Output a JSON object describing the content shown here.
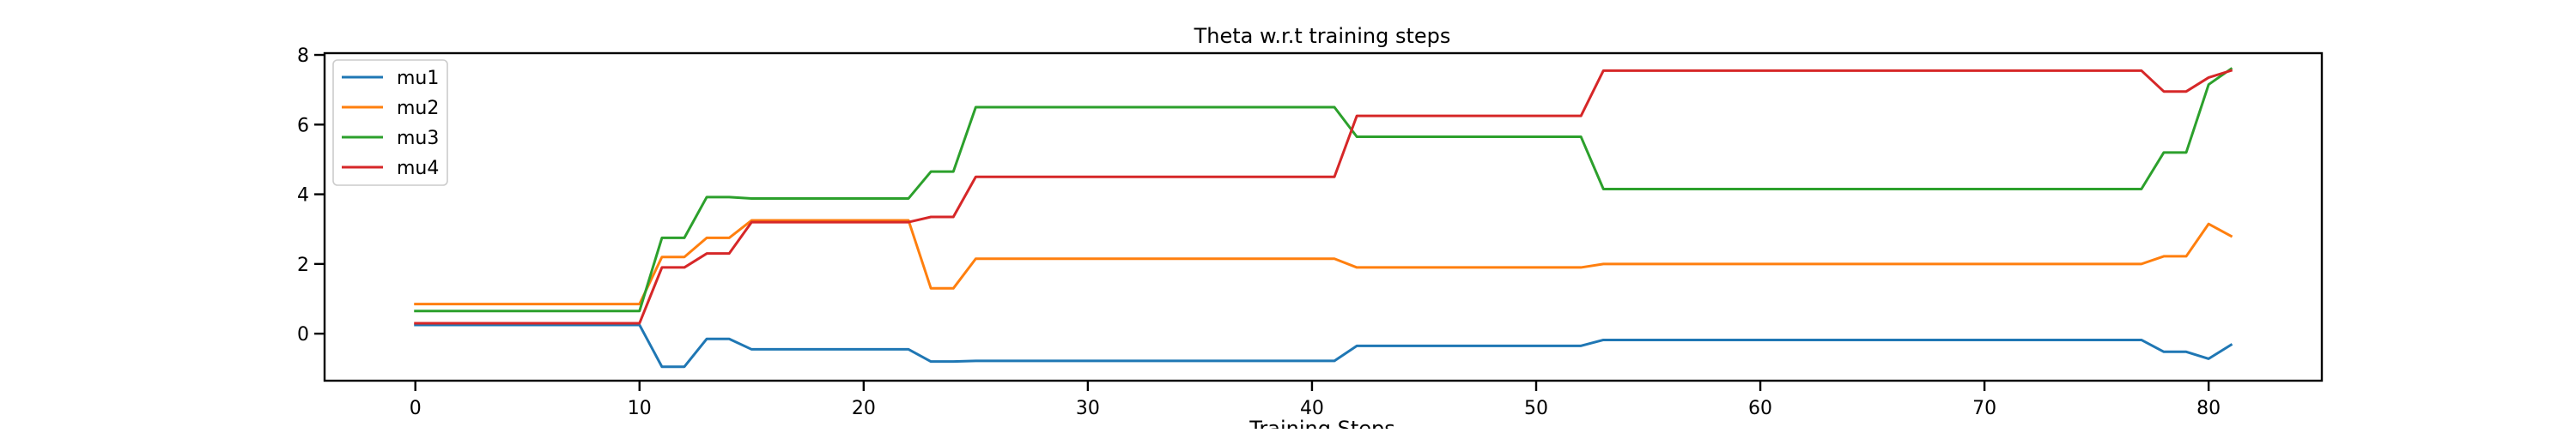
{
  "chart_data": {
    "type": "line",
    "title": "Theta w.r.t training steps",
    "xlabel": "Training Steps",
    "ylabel": "",
    "xlim": [
      -4.05,
      85.05
    ],
    "ylim": [
      -1.35,
      8.05
    ],
    "xticks": [
      0,
      10,
      20,
      30,
      40,
      50,
      60,
      70,
      80
    ],
    "yticks": [
      0,
      2,
      4,
      6,
      8
    ],
    "grid": false,
    "legend_position": "upper left",
    "x": [
      0,
      1,
      2,
      3,
      4,
      5,
      6,
      7,
      8,
      9,
      10,
      11,
      12,
      13,
      14,
      15,
      16,
      17,
      18,
      19,
      20,
      21,
      22,
      23,
      24,
      25,
      26,
      27,
      28,
      29,
      30,
      31,
      32,
      33,
      34,
      35,
      36,
      37,
      38,
      39,
      40,
      41,
      42,
      43,
      44,
      45,
      46,
      47,
      48,
      49,
      50,
      51,
      52,
      53,
      54,
      55,
      56,
      57,
      58,
      59,
      60,
      61,
      62,
      63,
      64,
      65,
      66,
      67,
      68,
      69,
      70,
      71,
      72,
      73,
      74,
      75,
      76,
      77,
      78,
      79,
      80,
      81
    ],
    "series": [
      {
        "name": "mu1",
        "color": "#1f77b4",
        "values": [
          0.25,
          0.25,
          0.25,
          0.25,
          0.25,
          0.25,
          0.25,
          0.25,
          0.25,
          0.25,
          0.25,
          -0.95,
          -0.95,
          -0.15,
          -0.15,
          -0.45,
          -0.45,
          -0.45,
          -0.45,
          -0.45,
          -0.45,
          -0.45,
          -0.45,
          -0.8,
          -0.8,
          -0.78,
          -0.78,
          -0.78,
          -0.78,
          -0.78,
          -0.78,
          -0.78,
          -0.78,
          -0.78,
          -0.78,
          -0.78,
          -0.78,
          -0.78,
          -0.78,
          -0.78,
          -0.78,
          -0.78,
          -0.35,
          -0.35,
          -0.35,
          -0.35,
          -0.35,
          -0.35,
          -0.35,
          -0.35,
          -0.35,
          -0.35,
          -0.35,
          -0.18,
          -0.18,
          -0.18,
          -0.18,
          -0.18,
          -0.18,
          -0.18,
          -0.18,
          -0.18,
          -0.18,
          -0.18,
          -0.18,
          -0.18,
          -0.18,
          -0.18,
          -0.18,
          -0.18,
          -0.18,
          -0.18,
          -0.18,
          -0.18,
          -0.18,
          -0.18,
          -0.18,
          -0.18,
          -0.52,
          -0.52,
          -0.72,
          -0.32
        ]
      },
      {
        "name": "mu2",
        "color": "#ff7f0e",
        "values": [
          0.85,
          0.85,
          0.85,
          0.85,
          0.85,
          0.85,
          0.85,
          0.85,
          0.85,
          0.85,
          0.85,
          2.2,
          2.2,
          2.75,
          2.75,
          3.25,
          3.25,
          3.25,
          3.25,
          3.25,
          3.25,
          3.25,
          3.25,
          1.3,
          1.3,
          2.15,
          2.15,
          2.15,
          2.15,
          2.15,
          2.15,
          2.15,
          2.15,
          2.15,
          2.15,
          2.15,
          2.15,
          2.15,
          2.15,
          2.15,
          2.15,
          2.15,
          1.9,
          1.9,
          1.9,
          1.9,
          1.9,
          1.9,
          1.9,
          1.9,
          1.9,
          1.9,
          1.9,
          2.0,
          2.0,
          2.0,
          2.0,
          2.0,
          2.0,
          2.0,
          2.0,
          2.0,
          2.0,
          2.0,
          2.0,
          2.0,
          2.0,
          2.0,
          2.0,
          2.0,
          2.0,
          2.0,
          2.0,
          2.0,
          2.0,
          2.0,
          2.0,
          2.0,
          2.22,
          2.22,
          3.15,
          2.8
        ]
      },
      {
        "name": "mu3",
        "color": "#2ca02c",
        "values": [
          0.65,
          0.65,
          0.65,
          0.65,
          0.65,
          0.65,
          0.65,
          0.65,
          0.65,
          0.65,
          0.65,
          2.75,
          2.75,
          3.92,
          3.92,
          3.88,
          3.88,
          3.88,
          3.88,
          3.88,
          3.88,
          3.88,
          3.88,
          4.65,
          4.65,
          6.5,
          6.5,
          6.5,
          6.5,
          6.5,
          6.5,
          6.5,
          6.5,
          6.5,
          6.5,
          6.5,
          6.5,
          6.5,
          6.5,
          6.5,
          6.5,
          6.5,
          5.65,
          5.65,
          5.65,
          5.65,
          5.65,
          5.65,
          5.65,
          5.65,
          5.65,
          5.65,
          5.65,
          4.15,
          4.15,
          4.15,
          4.15,
          4.15,
          4.15,
          4.15,
          4.15,
          4.15,
          4.15,
          4.15,
          4.15,
          4.15,
          4.15,
          4.15,
          4.15,
          4.15,
          4.15,
          4.15,
          4.15,
          4.15,
          4.15,
          4.15,
          4.15,
          4.15,
          5.2,
          5.2,
          7.15,
          7.6
        ]
      },
      {
        "name": "mu4",
        "color": "#d62728",
        "values": [
          0.3,
          0.3,
          0.3,
          0.3,
          0.3,
          0.3,
          0.3,
          0.3,
          0.3,
          0.3,
          0.3,
          1.9,
          1.9,
          2.3,
          2.3,
          3.2,
          3.2,
          3.2,
          3.2,
          3.2,
          3.2,
          3.2,
          3.2,
          3.35,
          3.35,
          4.5,
          4.5,
          4.5,
          4.5,
          4.5,
          4.5,
          4.5,
          4.5,
          4.5,
          4.5,
          4.5,
          4.5,
          4.5,
          4.5,
          4.5,
          4.5,
          4.5,
          6.25,
          6.25,
          6.25,
          6.25,
          6.25,
          6.25,
          6.25,
          6.25,
          6.25,
          6.25,
          6.25,
          7.55,
          7.55,
          7.55,
          7.55,
          7.55,
          7.55,
          7.55,
          7.55,
          7.55,
          7.55,
          7.55,
          7.55,
          7.55,
          7.55,
          7.55,
          7.55,
          7.55,
          7.55,
          7.55,
          7.55,
          7.55,
          7.55,
          7.55,
          7.55,
          7.55,
          6.95,
          6.95,
          7.35,
          7.55
        ]
      }
    ]
  }
}
